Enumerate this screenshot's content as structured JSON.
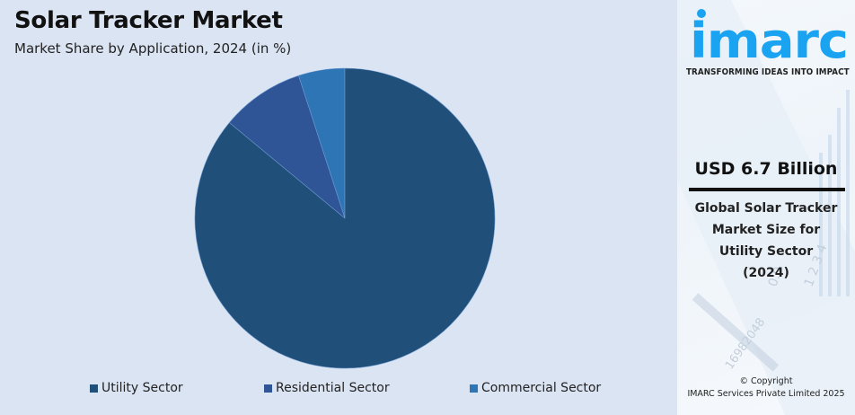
{
  "header": {
    "title": "Solar Tracker Market",
    "subtitle": "Market Share by Application, 2024 (in %)"
  },
  "chart_data": {
    "type": "pie",
    "title": "Solar Tracker Market",
    "subtitle": "Market Share by Application, 2024 (in %)",
    "categories": [
      "Utility Sector",
      "Residential Sector",
      "Commercial Sector"
    ],
    "values": [
      86,
      9,
      5
    ],
    "colors": [
      "#204f79",
      "#2f5597",
      "#2e75b6"
    ],
    "start_angle": "12 o'clock, counter-clockwise order: Commercial, Residential, Utility",
    "legend_position": "bottom"
  },
  "legend": {
    "items": [
      {
        "label": "Utility Sector",
        "color": "#204f79"
      },
      {
        "label": "Residential Sector",
        "color": "#2f5597"
      },
      {
        "label": "Commercial Sector",
        "color": "#2e75b6"
      }
    ]
  },
  "sidebar": {
    "brand": "imarc",
    "brand_color": "#1aa3f0",
    "tagline": "TRANSFORMING IDEAS INTO IMPACT",
    "highlight_value": "USD 6.7 Billion",
    "description_lines": [
      "Global Solar Tracker",
      "Market Size for",
      "Utility Sector",
      "(2024)"
    ],
    "copyright_line1": "© Copyright",
    "copyright_line2": "IMARC Services Private Limited 2025"
  }
}
